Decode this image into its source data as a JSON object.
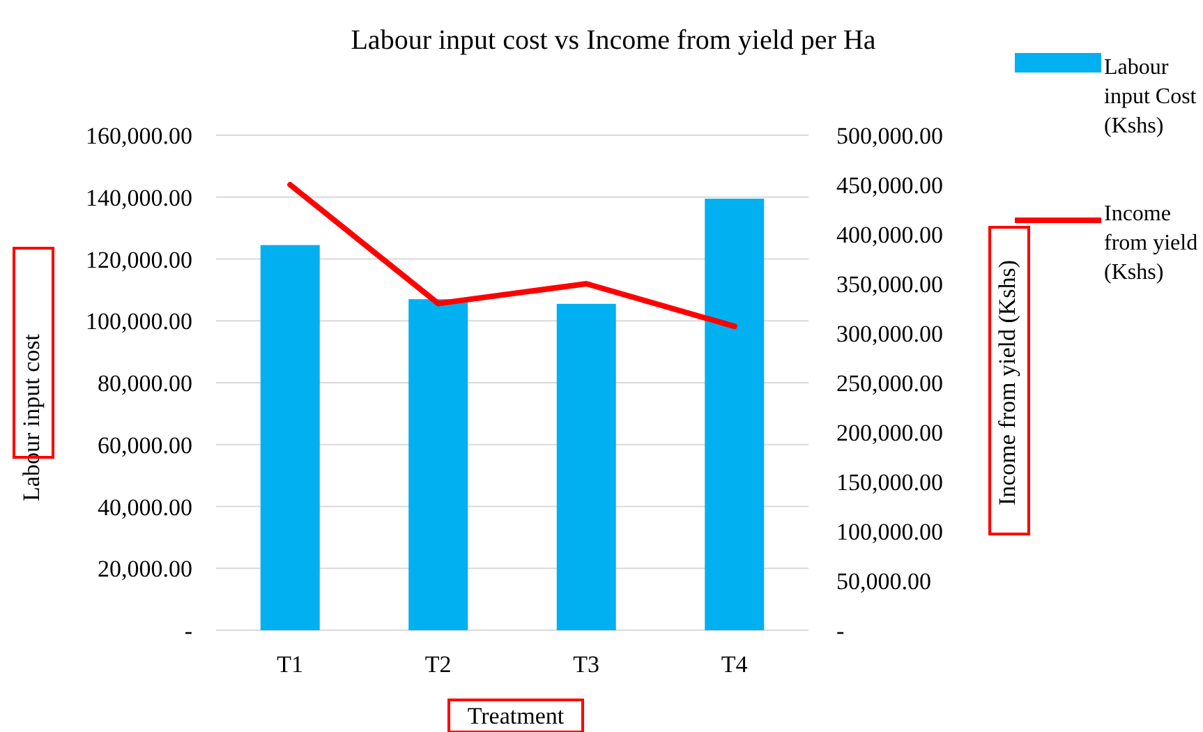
{
  "chart_data": {
    "type": "bar",
    "title": "Labour input cost vs Income from yield per Ha",
    "xlabel": "Treatment",
    "ylabel": "Labour input cost",
    "y2label": "Income from yield (Kshs)",
    "categories": [
      "T1",
      "T2",
      "T3",
      "T4"
    ],
    "series": [
      {
        "name": "Labour input Cost (Kshs)",
        "color": "#00b0f0",
        "values": [
          124500,
          107000,
          105500,
          139500
        ]
      },
      {
        "name": "Income from yield (Kshs)",
        "type": "line",
        "axis": "y2",
        "color": "#ff0000",
        "values": [
          450000,
          330000,
          350000,
          307000
        ]
      }
    ],
    "ylim": [
      0,
      160000
    ],
    "yticks": [
      {
        "value": 0,
        "label": "-"
      },
      {
        "value": 20000,
        "label": "20,000.00"
      },
      {
        "value": 40000,
        "label": "40,000.00"
      },
      {
        "value": 60000,
        "label": "60,000.00"
      },
      {
        "value": 80000,
        "label": "80,000.00"
      },
      {
        "value": 100000,
        "label": "100,000.00"
      },
      {
        "value": 120000,
        "label": "120,000.00"
      },
      {
        "value": 140000,
        "label": "140,000.00"
      },
      {
        "value": 160000,
        "label": "160,000.00"
      }
    ],
    "y2lim": [
      0,
      500000
    ],
    "y2ticks": [
      {
        "value": 0,
        "label": "-"
      },
      {
        "value": 50000,
        "label": "50,000.00"
      },
      {
        "value": 100000,
        "label": "100,000.00"
      },
      {
        "value": 150000,
        "label": "150,000.00"
      },
      {
        "value": 200000,
        "label": "200,000.00"
      },
      {
        "value": 250000,
        "label": "250,000.00"
      },
      {
        "value": 300000,
        "label": "300,000.00"
      },
      {
        "value": 350000,
        "label": "350,000.00"
      },
      {
        "value": 400000,
        "label": "400,000.00"
      },
      {
        "value": 450000,
        "label": "450,000.00"
      },
      {
        "value": 500000,
        "label": "500,000.00"
      }
    ],
    "grid": "y",
    "legend": "right",
    "line_style": "solid",
    "marker": "none"
  }
}
